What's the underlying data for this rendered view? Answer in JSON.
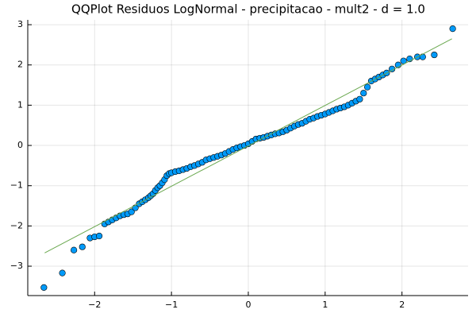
{
  "chart_data": {
    "type": "scatter",
    "title": "QQPlot Residuos LogNormal - precipitacao - mult2 - d = 1.0",
    "xlim": [
      -2.87,
      2.86
    ],
    "ylim": [
      -3.73,
      3.12
    ],
    "grid": true,
    "xticks": [
      {
        "value": -2,
        "label": "−2"
      },
      {
        "value": -1,
        "label": "−1"
      },
      0,
      1,
      2
    ],
    "yticks": [
      {
        "value": -3,
        "label": "−3"
      },
      {
        "value": -2,
        "label": "−2"
      },
      {
        "value": -1,
        "label": "−1"
      },
      0,
      1,
      2,
      3
    ],
    "series": [
      {
        "type": "scatter",
        "color": "#009af9",
        "x": [
          -2.66,
          -2.42,
          -2.27,
          -2.16,
          -2.06,
          -2.0,
          -1.94,
          -1.87,
          -1.82,
          -1.77,
          -1.72,
          -1.67,
          -1.62,
          -1.57,
          -1.52,
          -1.47,
          -1.42,
          -1.38,
          -1.34,
          -1.3,
          -1.27,
          -1.24,
          -1.21,
          -1.18,
          -1.15,
          -1.12,
          -1.09,
          -1.06,
          -1.03,
          -1.0,
          -0.95,
          -0.9,
          -0.85,
          -0.8,
          -0.75,
          -0.7,
          -0.65,
          -0.6,
          -0.55,
          -0.5,
          -0.45,
          -0.4,
          -0.35,
          -0.3,
          -0.25,
          -0.2,
          -0.15,
          -0.1,
          -0.05,
          0,
          0.05,
          0.1,
          0.15,
          0.2,
          0.25,
          0.3,
          0.35,
          0.4,
          0.45,
          0.5,
          0.55,
          0.6,
          0.65,
          0.7,
          0.75,
          0.8,
          0.85,
          0.9,
          0.95,
          1.0,
          1.05,
          1.1,
          1.15,
          1.2,
          1.25,
          1.3,
          1.35,
          1.4,
          1.45,
          1.5,
          1.55,
          1.6,
          1.65,
          1.7,
          1.75,
          1.8,
          1.87,
          1.95,
          2.02,
          2.1,
          2.2,
          2.27,
          2.42,
          2.66
        ],
        "values": [
          -3.53,
          -3.17,
          -2.6,
          -2.52,
          -2.3,
          -2.27,
          -2.25,
          -1.95,
          -1.9,
          -1.85,
          -1.8,
          -1.75,
          -1.72,
          -1.7,
          -1.65,
          -1.55,
          -1.45,
          -1.4,
          -1.35,
          -1.3,
          -1.25,
          -1.2,
          -1.12,
          -1.05,
          -1.0,
          -0.93,
          -0.85,
          -0.75,
          -0.7,
          -0.68,
          -0.65,
          -0.63,
          -0.6,
          -0.57,
          -0.53,
          -0.5,
          -0.46,
          -0.42,
          -0.36,
          -0.33,
          -0.3,
          -0.27,
          -0.24,
          -0.2,
          -0.15,
          -0.1,
          -0.06,
          -0.03,
          0.0,
          0.04,
          0.1,
          0.16,
          0.18,
          0.2,
          0.23,
          0.26,
          0.29,
          0.31,
          0.34,
          0.38,
          0.43,
          0.48,
          0.52,
          0.55,
          0.6,
          0.65,
          0.68,
          0.72,
          0.75,
          0.78,
          0.82,
          0.86,
          0.9,
          0.93,
          0.96,
          1.0,
          1.05,
          1.1,
          1.15,
          1.3,
          1.45,
          1.6,
          1.65,
          1.7,
          1.75,
          1.8,
          1.9,
          2.0,
          2.1,
          2.15,
          2.2,
          2.2,
          2.25,
          2.9
        ]
      },
      {
        "type": "line",
        "color": "#6aa84f",
        "x": [
          -2.65,
          2.65
        ],
        "values": [
          -2.67,
          2.65
        ]
      }
    ]
  }
}
